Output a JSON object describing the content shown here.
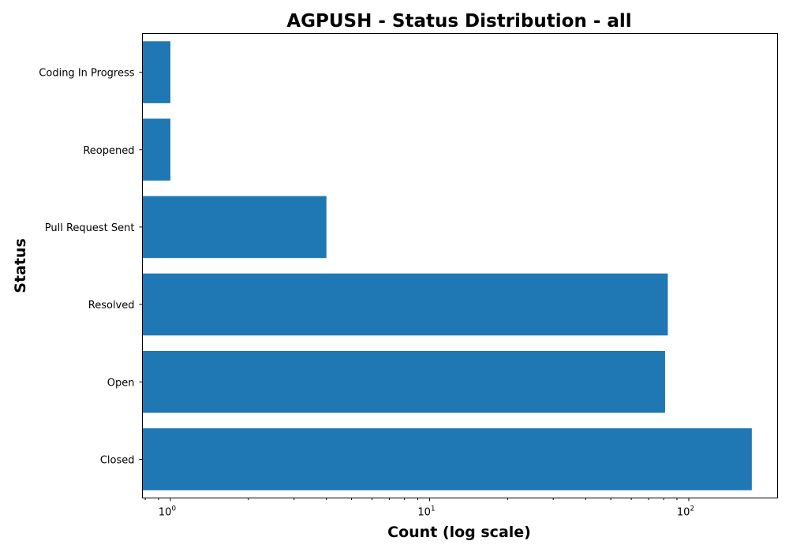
{
  "chart_data": {
    "type": "bar",
    "orientation": "horizontal",
    "title": "AGPUSH - Status Distribution - all",
    "xlabel": "Count (log scale)",
    "ylabel": "Status",
    "xscale": "log",
    "xlim": [
      0.78,
      220
    ],
    "x_ticks": [
      {
        "value": 1,
        "base": "10",
        "exp": "0"
      },
      {
        "value": 10,
        "base": "10",
        "exp": "1"
      },
      {
        "value": 100,
        "base": "10",
        "exp": "2"
      }
    ],
    "categories": [
      "Closed",
      "Open",
      "Resolved",
      "Pull Request Sent",
      "Reopened",
      "Coding In Progress"
    ],
    "values": [
      175,
      81,
      83,
      4,
      1,
      1
    ],
    "bar_color": "#1f77b4",
    "grid": false,
    "legend": "none"
  }
}
